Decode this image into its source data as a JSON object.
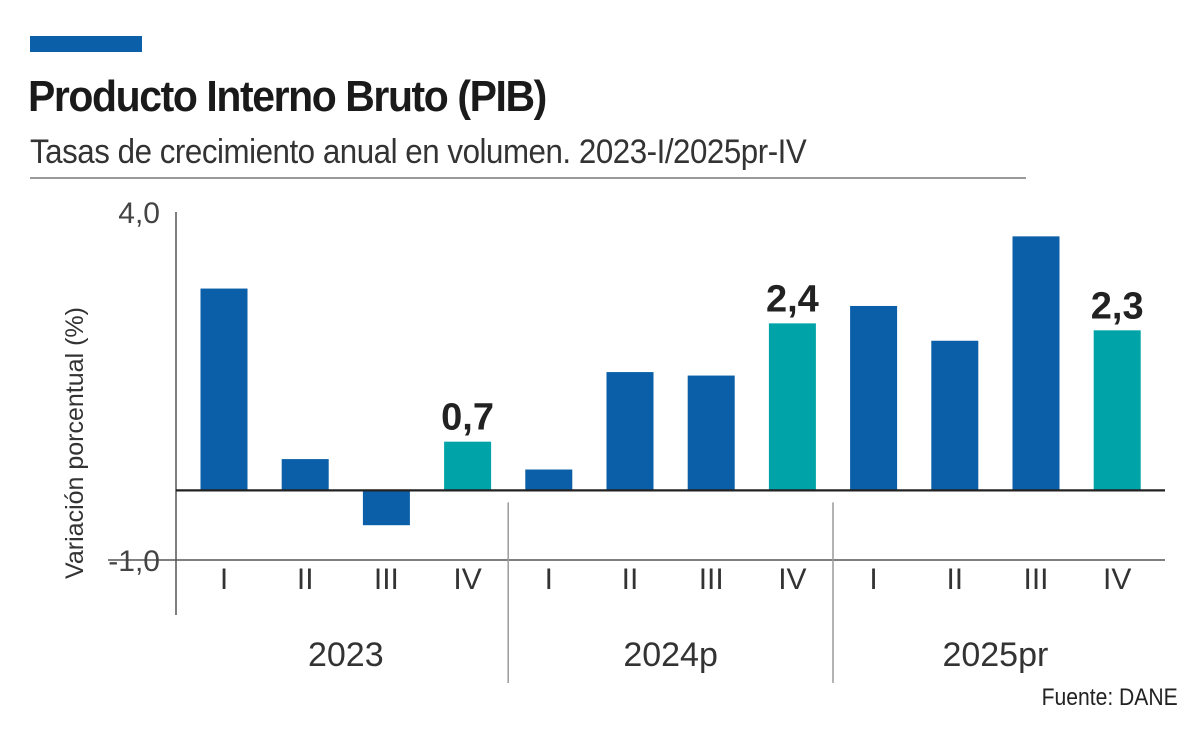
{
  "header": {
    "title": "Producto Interno Bruto (PIB)",
    "subtitle": "Tasas de crecimiento anual en volumen. 2023-I/2025pr-IV"
  },
  "source": "Fuente: DANE",
  "colors": {
    "accent": "#0a5fa8",
    "bar": "#0a5fa8",
    "highlight": "#00a4a8",
    "axis": "#333333"
  },
  "chart_data": {
    "type": "bar",
    "ylabel": "Variación porcentual  (%)",
    "ylim": [
      -1.0,
      4.0
    ],
    "yticks": [
      "4,0",
      "-1,0"
    ],
    "groups": [
      {
        "name": "2023",
        "quarters": [
          "I",
          "II",
          "III",
          "IV"
        ],
        "values": [
          2.9,
          0.45,
          -0.5,
          0.7
        ],
        "highlight": [
          false,
          false,
          false,
          true
        ],
        "labels": [
          "",
          "",
          "",
          "0,7"
        ]
      },
      {
        "name": "2024p",
        "quarters": [
          "I",
          "II",
          "III",
          "IV"
        ],
        "values": [
          0.3,
          1.7,
          1.65,
          2.4
        ],
        "highlight": [
          false,
          false,
          false,
          true
        ],
        "labels": [
          "",
          "",
          "",
          "2,4"
        ]
      },
      {
        "name": "2025pr",
        "quarters": [
          "I",
          "II",
          "III",
          "IV"
        ],
        "values": [
          2.65,
          2.15,
          3.65,
          2.3
        ],
        "highlight": [
          false,
          false,
          false,
          true
        ],
        "labels": [
          "",
          "",
          "",
          "2,3"
        ]
      }
    ]
  }
}
